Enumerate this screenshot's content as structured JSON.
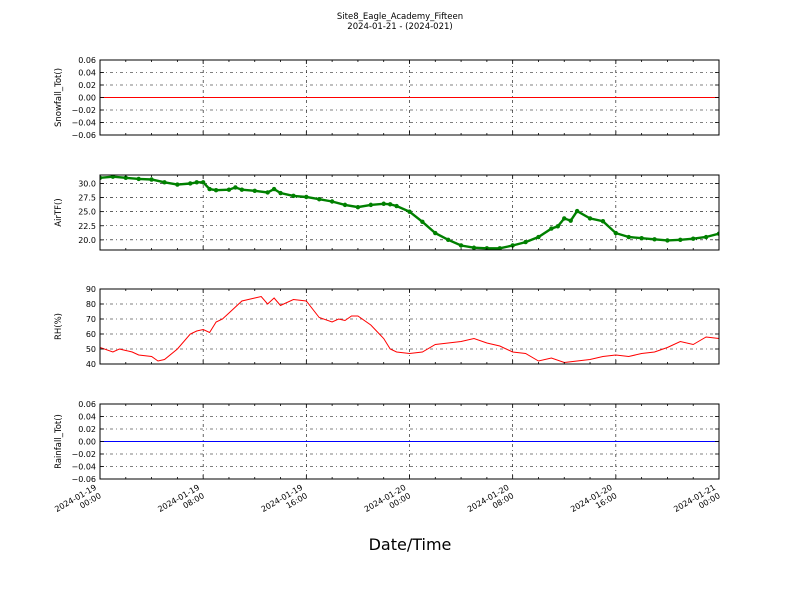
{
  "figure": {
    "title": "Site8_Eagle_Academy_Fifteen",
    "subtitle": "2024-01-21 - (2024-021)",
    "xlabel": "Date/Time"
  },
  "chart_data": [
    {
      "type": "line",
      "ylabel": "Snowfall_Tot()",
      "xlim": [
        0,
        48
      ],
      "ylim": [
        -0.06,
        0.06
      ],
      "yticks": [
        -0.06,
        -0.04,
        -0.02,
        0.0,
        0.02,
        0.04,
        0.06
      ],
      "ytick_labels": [
        "−0.06",
        "−0.04",
        "−0.02",
        "0.00",
        "0.02",
        "0.04",
        "0.06"
      ],
      "grid": true,
      "series": [
        {
          "color": "#ff0000",
          "marker": "none",
          "x": [
            0,
            48
          ],
          "y": [
            0,
            0
          ]
        }
      ]
    },
    {
      "type": "line",
      "ylabel": "AirTF()",
      "xlim": [
        0,
        48
      ],
      "ylim": [
        18.2,
        31.5
      ],
      "yticks": [
        20.0,
        22.5,
        25.0,
        27.5,
        30.0
      ],
      "ytick_labels": [
        "20.0",
        "22.5",
        "25.0",
        "27.5",
        "30.0"
      ],
      "grid": true,
      "series": [
        {
          "color": "#008000",
          "marker": "dot",
          "x": [
            0,
            1,
            2,
            3,
            4,
            5,
            6,
            7,
            7.5,
            8,
            8.5,
            9,
            10,
            10.5,
            11,
            12,
            13,
            13.5,
            14,
            15,
            16,
            17,
            18,
            19,
            20,
            21,
            22,
            22.5,
            23,
            24,
            25,
            26,
            27,
            28,
            29,
            30,
            31,
            32,
            33,
            34,
            35,
            35.5,
            36,
            36.5,
            37,
            38,
            39,
            40,
            41,
            42,
            43,
            44,
            45,
            46,
            47,
            48
          ],
          "y": [
            31.0,
            31.2,
            31.0,
            30.8,
            30.7,
            30.2,
            29.8,
            30.0,
            30.2,
            30.2,
            29.0,
            28.8,
            28.9,
            29.3,
            28.9,
            28.7,
            28.4,
            29.0,
            28.3,
            27.8,
            27.6,
            27.2,
            26.8,
            26.2,
            25.8,
            26.2,
            26.4,
            26.3,
            26.0,
            25.0,
            23.2,
            21.2,
            20.0,
            19.0,
            18.6,
            18.5,
            18.5,
            19.0,
            19.6,
            20.5,
            22.0,
            22.4,
            23.8,
            23.4,
            25.1,
            23.8,
            23.3,
            21.2,
            20.5,
            20.3,
            20.1,
            19.9,
            20.0,
            20.2,
            20.5,
            21.1
          ]
        }
      ]
    },
    {
      "type": "line",
      "ylabel": "RH(%)",
      "xlim": [
        0,
        48
      ],
      "ylim": [
        40,
        90
      ],
      "yticks": [
        40,
        50,
        60,
        70,
        80,
        90
      ],
      "ytick_labels": [
        "40",
        "50",
        "60",
        "70",
        "80",
        "90"
      ],
      "grid": true,
      "series": [
        {
          "color": "#ff0000",
          "marker": "none",
          "x": [
            0,
            1,
            1.5,
            2,
            2.5,
            3,
            4,
            4.5,
            5,
            6,
            7,
            7.5,
            8,
            8.5,
            9,
            9.5,
            10,
            11,
            12,
            12.5,
            13,
            13.5,
            14,
            15,
            16,
            17,
            18,
            18.5,
            19,
            19.5,
            20,
            21,
            22,
            22.5,
            23,
            24,
            25,
            26,
            27,
            28,
            29,
            30,
            31,
            32,
            33,
            34,
            35,
            36,
            37,
            38,
            39,
            40,
            41,
            42,
            43,
            44,
            45,
            46,
            47,
            48
          ],
          "y": [
            51,
            48,
            50,
            49,
            48,
            46,
            45,
            42,
            43,
            50,
            60,
            62,
            63,
            61,
            68,
            70,
            74,
            82,
            84,
            85,
            80,
            84,
            79,
            83,
            82,
            71,
            68,
            70,
            69,
            72,
            72,
            66,
            57,
            50,
            48,
            47,
            48,
            53,
            54,
            55,
            57,
            54,
            52,
            48,
            47,
            42,
            44,
            41,
            42,
            43,
            45,
            46,
            45,
            47,
            48,
            51,
            55,
            53,
            58,
            57
          ]
        }
      ]
    },
    {
      "type": "line",
      "ylabel": "Rainfall_Tot()",
      "xlim": [
        0,
        48
      ],
      "ylim": [
        -0.06,
        0.06
      ],
      "yticks": [
        -0.06,
        -0.04,
        -0.02,
        0.0,
        0.02,
        0.04,
        0.06
      ],
      "ytick_labels": [
        "−0.06",
        "−0.04",
        "−0.02",
        "0.00",
        "0.02",
        "0.04",
        "0.06"
      ],
      "grid": true,
      "series": [
        {
          "color": "#0000ff",
          "marker": "none",
          "x": [
            0,
            48
          ],
          "y": [
            0,
            0
          ]
        }
      ]
    }
  ],
  "x_axis": {
    "hours_per_major_tick": 8,
    "tick_labels": [
      [
        "2024-01-19",
        "00:00"
      ],
      [
        "2024-01-19",
        "08:00"
      ],
      [
        "2024-01-19",
        "16:00"
      ],
      [
        "2024-01-20",
        "00:00"
      ],
      [
        "2024-01-20",
        "08:00"
      ],
      [
        "2024-01-20",
        "16:00"
      ],
      [
        "2024-01-21",
        "00:00"
      ]
    ]
  }
}
